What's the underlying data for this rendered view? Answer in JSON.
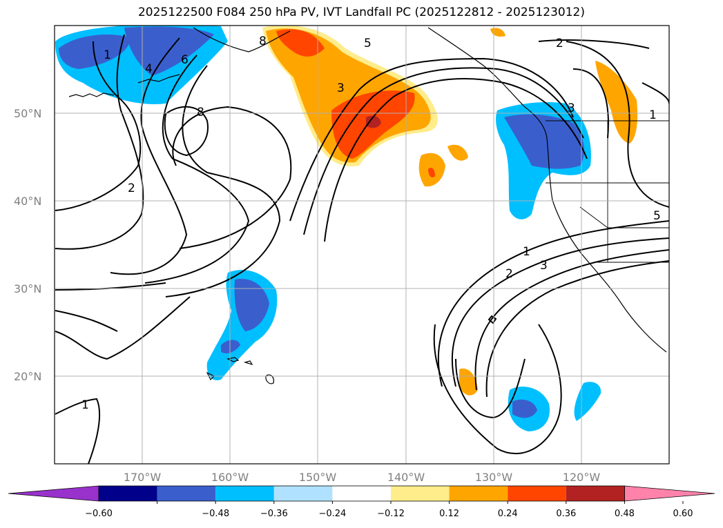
{
  "title": "2025122500 F084 250 hPa PV, IVT Landfall PC (2025122812 - 2025123012)",
  "map": {
    "lon_range": [
      -180,
      -110
    ],
    "lat_range": [
      10,
      60
    ],
    "lon_ticks": [
      -170,
      -160,
      -150,
      -140,
      -130,
      -120
    ],
    "lat_ticks": [
      20,
      30,
      40,
      50
    ],
    "lon_tick_labels": [
      "170°W",
      "160°W",
      "150°W",
      "140°W",
      "130°W",
      "120°W"
    ],
    "lat_tick_labels": [
      "20°N",
      "30°N",
      "40°N",
      "50°N"
    ],
    "gridlines": true
  },
  "contour_labels": [
    "1",
    "4",
    "6",
    "8",
    "2",
    "8",
    "3",
    "5",
    "2",
    "1",
    "3",
    "1",
    "2",
    "3",
    "5",
    "1"
  ],
  "colorbar": {
    "ticks": [
      "−0.60",
      "−0.48",
      "−0.36",
      "−0.24",
      "−0.12",
      "0.12",
      "0.24",
      "0.36",
      "0.48",
      "0.60"
    ],
    "colors": [
      "#9932CC",
      "#00008B",
      "#3A5FCD",
      "#00BFFF",
      "#B0E2FF",
      "#FFFFFF",
      "#FFEC8B",
      "#FFA500",
      "#FF4500",
      "#B22222",
      "#FF82AB"
    ],
    "extend": "both"
  },
  "colors": {
    "gridline": "#b0b0b0",
    "contour": "#000000"
  }
}
